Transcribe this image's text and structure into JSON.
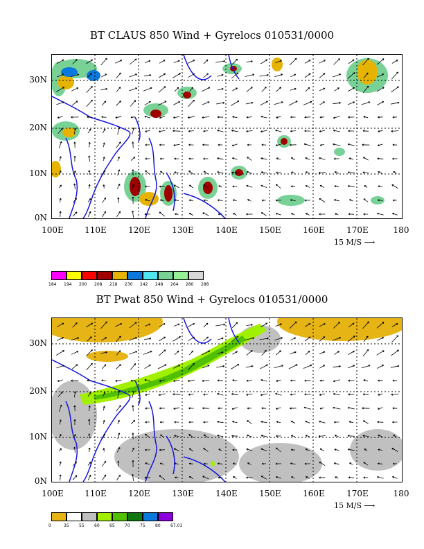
{
  "top": {
    "title": "BT CLAUS 850 Wind + Gyrelocs 010531/0000",
    "y_labels": [
      "30N",
      "20N",
      "10N",
      "0N"
    ],
    "x_labels": [
      "100E",
      "110E",
      "120E",
      "130E",
      "140E",
      "150E",
      "160E",
      "170E",
      "180"
    ],
    "vector_label": "15 M/S",
    "colorbar": {
      "colors": [
        "#ff00ff",
        "#ffff00",
        "#ff0000",
        "#a00000",
        "#e6b400",
        "#0a78dc",
        "#50e6f0",
        "#78d296",
        "#96f096",
        "#d8d8d8"
      ],
      "labels": [
        "184",
        "194",
        "200",
        "208",
        "218",
        "230",
        "242",
        "248",
        "264",
        "280",
        "288"
      ]
    }
  },
  "bottom": {
    "title": "BT Pwat 850 Wind + Gyrelocs 010531/0000",
    "y_labels": [
      "30N",
      "20N",
      "10N",
      "0N"
    ],
    "x_labels": [
      "100E",
      "110E",
      "120E",
      "130E",
      "140E",
      "150E",
      "160E",
      "170E",
      "180"
    ],
    "vector_label": "15 M/S",
    "colorbar": {
      "colors": [
        "#e6b414",
        "#ffffff",
        "#c0c0c0",
        "#a0f000",
        "#50c000",
        "#107810",
        "#0a78dc",
        "#8c00dc"
      ],
      "labels": [
        "0",
        "35",
        "55",
        "60",
        "65",
        "70",
        "75",
        "80",
        "67.01"
      ]
    }
  }
}
